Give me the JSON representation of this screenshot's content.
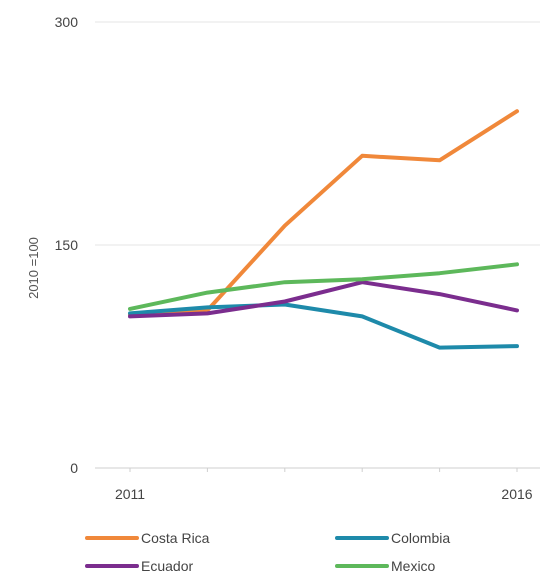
{
  "chart_data": {
    "type": "line",
    "title": "",
    "xlabel": "",
    "ylabel": "2010 =100",
    "x": [
      2011,
      2012,
      2013,
      2014,
      2015,
      2016
    ],
    "x_tick_labels": [
      "2011",
      "2016"
    ],
    "yticks": [
      "0",
      "150",
      "300"
    ],
    "ylim": [
      0,
      300
    ],
    "grid": "horizontal",
    "legend_position": "bottom",
    "series": [
      {
        "name": "Costa Rica",
        "color": "#F0883A",
        "values": [
          103,
          106,
          163,
          210,
          207,
          240
        ]
      },
      {
        "name": "Colombia",
        "color": "#1E8AAA",
        "values": [
          104,
          108,
          110,
          102,
          81,
          82
        ]
      },
      {
        "name": "Ecuador",
        "color": "#7B2D8E",
        "values": [
          102,
          104,
          112,
          125,
          117,
          106
        ]
      },
      {
        "name": "Mexico",
        "color": "#5DB85B",
        "values": [
          107,
          118,
          125,
          127,
          131,
          137
        ]
      }
    ]
  }
}
